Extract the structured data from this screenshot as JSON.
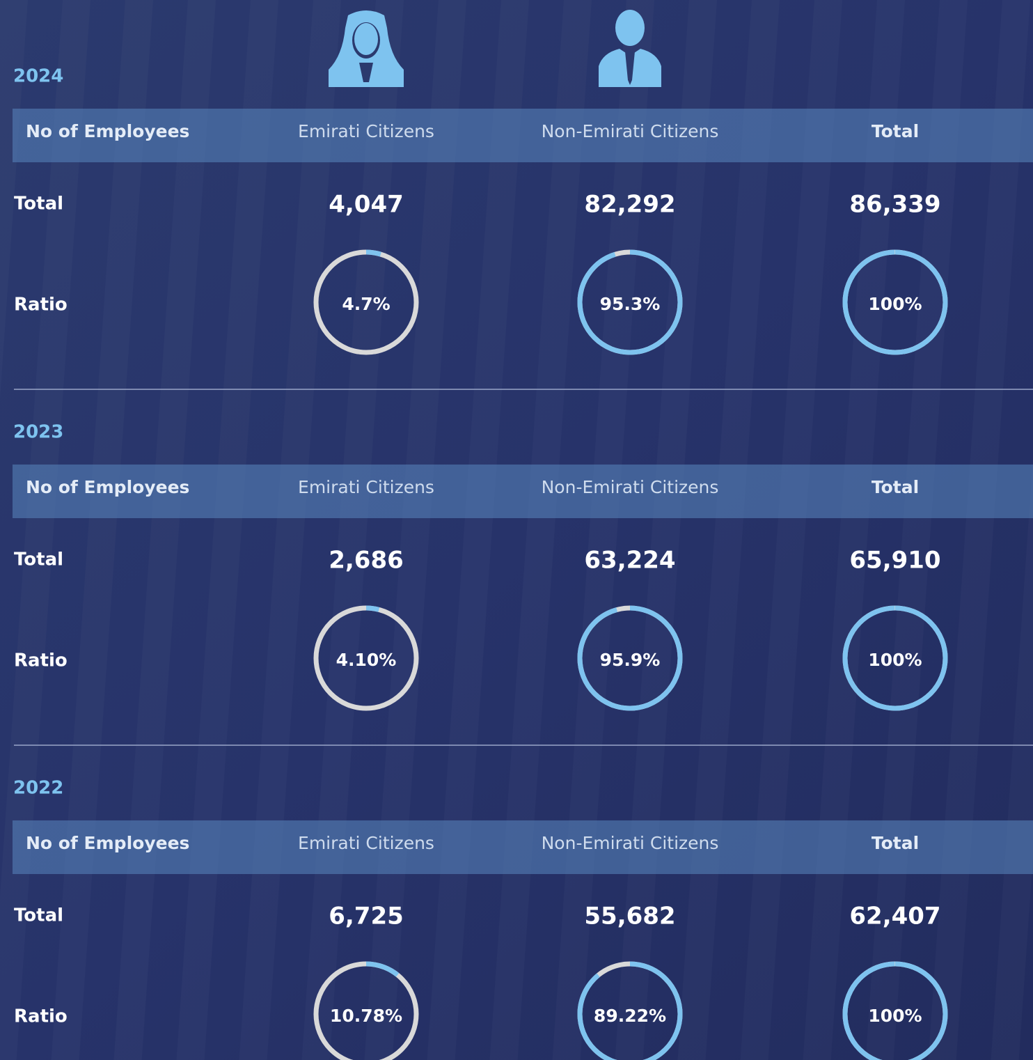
{
  "sections": [
    {
      "year": "2024",
      "header": [
        "No of Employees",
        "Emirati Citizens",
        "Non-Emirati Citizens",
        "Total"
      ],
      "total_label": "Total",
      "totals": [
        "4,047",
        "82,292",
        "86,339"
      ],
      "ratio_label": "Ratio",
      "ratios": [
        {
          "value": 4.7,
          "label": "4.7%"
        },
        {
          "value": 95.3,
          "label": "95.3%"
        },
        {
          "value": 100,
          "label": "100%"
        }
      ]
    },
    {
      "year": "2023",
      "header": [
        "No of Employees",
        "Emirati Citizens",
        "Non-Emirati Citizens",
        "Total"
      ],
      "total_label": "Total",
      "totals": [
        "2,686",
        "63,224",
        "65,910"
      ],
      "ratio_label": "Ratio",
      "ratios": [
        {
          "value": 4.1,
          "label": "4.10%"
        },
        {
          "value": 95.9,
          "label": "95.9%"
        },
        {
          "value": 100,
          "label": "100%"
        }
      ]
    },
    {
      "year": "2022",
      "header": [
        "No of Employees",
        "Emirati Citizens",
        "Non-Emirati Citizens",
        "Total"
      ],
      "total_label": "Total",
      "totals": [
        "6,725",
        "55,682",
        "62,407"
      ],
      "ratio_label": "Ratio",
      "ratios": [
        {
          "value": 10.78,
          "label": "10.78%"
        },
        {
          "value": 89.22,
          "label": "89.22%"
        },
        {
          "value": 100,
          "label": "100%"
        }
      ]
    }
  ]
}
